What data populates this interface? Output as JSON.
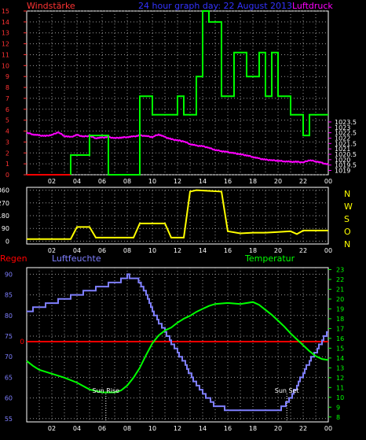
{
  "colors": {
    "bg": "#000000",
    "frame": "#ffffff",
    "grid": "#9a9a9a",
    "wind": "#00ff00",
    "pressure": "#ff00ff",
    "winddir": "#ffff00",
    "humidity": "#7f7fff",
    "temperature": "#00ff00",
    "rain": "#ff0000",
    "daylight": "#ffffff",
    "axis_left_top": "#ff3333",
    "axis_right_top": "#ff00ff",
    "axis_left_bottom": "#7f7fff",
    "axis_right_bottom": "#00ff00"
  },
  "header": {
    "left": "Windstärke",
    "center": "24 hour graph day: 22 August 2013",
    "right": "Luftdruck"
  },
  "chart_data": [
    {
      "type": "line",
      "panel": "wind-pressure",
      "title": "24 hour graph day: 22 August 2013",
      "ylabel": "Windstärke",
      "y2label": "Luftdruck",
      "x_ticks": [
        "02",
        "04",
        "06",
        "08",
        "10",
        "12",
        "14",
        "16",
        "18",
        "20",
        "22",
        "00"
      ],
      "ylim": [
        0,
        15
      ],
      "y_ticks": [
        0,
        1,
        2,
        3,
        4,
        5,
        6,
        7,
        8,
        9,
        10,
        11,
        12,
        13,
        14,
        15
      ],
      "y2lim": [
        1018.6,
        1033.8
      ],
      "y2_ticks": [
        1019,
        1019.5,
        1020,
        1020.5,
        1021,
        1021.5,
        1022,
        1022.5,
        1023,
        1023.5
      ],
      "y2_tick_labels": [
        "1019",
        "1019.5",
        "1020",
        "1020.5",
        "1021",
        "1021.5",
        "1022",
        "1022.5",
        "1023",
        "1023.5"
      ],
      "series": [
        {
          "name": "Windstärke",
          "color": "#ff0000",
          "points": [
            [
              0,
              0
            ],
            [
              3.5,
              0
            ]
          ]
        },
        {
          "name": "Windstärke",
          "color": "#00ff00",
          "points": [
            [
              3.5,
              0
            ],
            [
              3.5,
              1.8
            ],
            [
              5,
              1.8
            ],
            [
              5,
              3.6
            ],
            [
              6.5,
              3.6
            ],
            [
              6.5,
              0
            ],
            [
              9,
              0
            ],
            [
              9,
              7.2
            ],
            [
              10,
              7.2
            ],
            [
              10,
              5.5
            ],
            [
              12,
              5.5
            ],
            [
              12,
              7.2
            ],
            [
              12.5,
              7.2
            ],
            [
              12.5,
              5.5
            ],
            [
              13.5,
              5.5
            ],
            [
              13.5,
              9
            ],
            [
              14,
              9
            ],
            [
              14,
              15
            ],
            [
              14.5,
              15
            ],
            [
              14.5,
              14
            ],
            [
              15.5,
              14
            ],
            [
              15.5,
              7.2
            ],
            [
              16.5,
              7.2
            ],
            [
              16.5,
              11.2
            ],
            [
              17.5,
              11.2
            ],
            [
              17.5,
              9
            ],
            [
              18.5,
              9
            ],
            [
              18.5,
              11.2
            ],
            [
              19,
              11.2
            ],
            [
              19,
              7.2
            ],
            [
              19.5,
              7.2
            ],
            [
              19.5,
              11.2
            ],
            [
              20,
              11.2
            ],
            [
              20,
              7.2
            ],
            [
              21,
              7.2
            ],
            [
              21,
              5.5
            ],
            [
              22,
              5.5
            ],
            [
              22,
              3.6
            ],
            [
              22.5,
              3.6
            ],
            [
              22.5,
              5.5
            ],
            [
              24,
              5.5
            ]
          ]
        },
        {
          "name": "Luftdruck",
          "color": "#ff00ff",
          "points": [
            [
              0,
              1022.5
            ],
            [
              0.5,
              1022.35
            ],
            [
              1,
              1022.25
            ],
            [
              1.5,
              1022.2
            ],
            [
              2,
              1022.3
            ],
            [
              2.5,
              1022.55
            ],
            [
              3,
              1022.2
            ],
            [
              3.5,
              1022.1
            ],
            [
              4,
              1022.3
            ],
            [
              4.5,
              1022.15
            ],
            [
              5,
              1022.2
            ],
            [
              5.5,
              1022.0
            ],
            [
              6,
              1022.05
            ],
            [
              6.5,
              1022.1
            ],
            [
              7,
              1022.0
            ],
            [
              7.5,
              1022.05
            ],
            [
              8,
              1022.1
            ],
            [
              8.5,
              1022.15
            ],
            [
              9,
              1022.25
            ],
            [
              9.5,
              1022.2
            ],
            [
              10,
              1022.1
            ],
            [
              10.5,
              1022.35
            ],
            [
              11,
              1022.1
            ],
            [
              11.5,
              1021.9
            ],
            [
              12,
              1021.8
            ],
            [
              12.5,
              1021.7
            ],
            [
              13,
              1021.45
            ],
            [
              13.5,
              1021.3
            ],
            [
              14,
              1021.25
            ],
            [
              14.5,
              1021.1
            ],
            [
              15,
              1020.9
            ],
            [
              15.5,
              1020.8
            ],
            [
              16,
              1020.7
            ],
            [
              16.5,
              1020.6
            ],
            [
              17,
              1020.5
            ],
            [
              17.5,
              1020.4
            ],
            [
              18,
              1020.25
            ],
            [
              18.5,
              1020.1
            ],
            [
              19,
              1020.0
            ],
            [
              19.5,
              1019.95
            ],
            [
              20,
              1019.9
            ],
            [
              20.5,
              1019.85
            ],
            [
              21,
              1019.8
            ],
            [
              21.5,
              1019.8
            ],
            [
              22,
              1019.75
            ],
            [
              22.5,
              1019.95
            ],
            [
              23,
              1019.85
            ],
            [
              23.5,
              1019.7
            ],
            [
              24,
              1019.55
            ]
          ]
        }
      ]
    },
    {
      "type": "line",
      "panel": "wind-direction",
      "x_ticks": [
        "02",
        "04",
        "06",
        "08",
        "10",
        "12",
        "14",
        "16",
        "18",
        "20",
        "22",
        "00"
      ],
      "ylim": [
        -20,
        380
      ],
      "y_ticks": [
        0,
        90,
        180,
        270,
        360
      ],
      "right_labels": [
        "N",
        "W",
        "S",
        "O",
        "N"
      ],
      "series": [
        {
          "name": "Windrichtung",
          "color": "#ffff00",
          "points": [
            [
              0,
              15
            ],
            [
              3.5,
              15
            ],
            [
              4,
              100
            ],
            [
              5,
              100
            ],
            [
              5.5,
              25
            ],
            [
              8.5,
              25
            ],
            [
              9,
              125
            ],
            [
              11,
              125
            ],
            [
              11.5,
              25
            ],
            [
              12.5,
              25
            ],
            [
              13,
              350
            ],
            [
              13.5,
              360
            ],
            [
              14.5,
              355
            ],
            [
              15.5,
              350
            ],
            [
              16,
              70
            ],
            [
              17,
              55
            ],
            [
              18,
              60
            ],
            [
              19,
              60
            ],
            [
              20,
              65
            ],
            [
              21,
              70
            ],
            [
              21.5,
              50
            ],
            [
              22,
              75
            ],
            [
              23,
              75
            ],
            [
              24,
              75
            ]
          ]
        }
      ]
    },
    {
      "type": "line",
      "panel": "humidity-temperature",
      "x_ticks": [
        "02",
        "04",
        "06",
        "08",
        "10",
        "12",
        "14",
        "16",
        "18",
        "20",
        "22",
        "00"
      ],
      "legend_left": "Regen",
      "legend_mid": "Luftfeuchte",
      "legend_right": "Temperatur",
      "ylim": [
        54.2,
        91.6
      ],
      "y_ticks": [
        55,
        60,
        65,
        70,
        75,
        80,
        85,
        90
      ],
      "y2lim": [
        7.5,
        23.2
      ],
      "y2_ticks": [
        8,
        9,
        10,
        11,
        12,
        13,
        14,
        15,
        16,
        17,
        18,
        19,
        20,
        21,
        22,
        23
      ],
      "rain_marker": "0",
      "annotations": [
        {
          "text": "Sun Rise",
          "x": 6.3
        },
        {
          "text": "Sun Set",
          "x": 20.7
        }
      ],
      "series": [
        {
          "name": "Luftfeuchte",
          "color": "#7f7fff",
          "points": [
            [
              0,
              81
            ],
            [
              1,
              82
            ],
            [
              2,
              83
            ],
            [
              3,
              84
            ],
            [
              4,
              85
            ],
            [
              5,
              86
            ],
            [
              6,
              87
            ],
            [
              7,
              88
            ],
            [
              8,
              89.5
            ],
            [
              8.7,
              89.3
            ],
            [
              9.5,
              85
            ],
            [
              10,
              81
            ],
            [
              10.5,
              78
            ],
            [
              11,
              76
            ],
            [
              11.5,
              73
            ],
            [
              12,
              71
            ],
            [
              12.5,
              68.5
            ],
            [
              13,
              65.5
            ],
            [
              13.5,
              63
            ],
            [
              14,
              61
            ],
            [
              14.5,
              59.5
            ],
            [
              15,
              58
            ],
            [
              16,
              57
            ],
            [
              17,
              57
            ],
            [
              18,
              57
            ],
            [
              19,
              56.5
            ],
            [
              20,
              57
            ],
            [
              20.5,
              58
            ],
            [
              21,
              60
            ],
            [
              21.5,
              63
            ],
            [
              22,
              66
            ],
            [
              22.5,
              69
            ],
            [
              23,
              71
            ],
            [
              23.5,
              74
            ],
            [
              24,
              76
            ]
          ]
        },
        {
          "name": "Temperatur",
          "color": "#00ff00",
          "points": [
            [
              0,
              13.7
            ],
            [
              0.5,
              13.2
            ],
            [
              1,
              12.8
            ],
            [
              2,
              12.4
            ],
            [
              3,
              12.0
            ],
            [
              4,
              11.5
            ],
            [
              5,
              10.8
            ],
            [
              6,
              10.5
            ],
            [
              7,
              10.5
            ],
            [
              7.5,
              10.7
            ],
            [
              8,
              11.2
            ],
            [
              8.5,
              12.0
            ],
            [
              9,
              13.0
            ],
            [
              9.5,
              14.3
            ],
            [
              10,
              15.5
            ],
            [
              10.5,
              16.3
            ],
            [
              11,
              16.8
            ],
            [
              11.5,
              17.1
            ],
            [
              12,
              17.6
            ],
            [
              12.5,
              18.0
            ],
            [
              13,
              18.3
            ],
            [
              13.5,
              18.7
            ],
            [
              14,
              19.0
            ],
            [
              14.5,
              19.3
            ],
            [
              15,
              19.5
            ],
            [
              16,
              19.6
            ],
            [
              17,
              19.5
            ],
            [
              18,
              19.7
            ],
            [
              18.5,
              19.4
            ],
            [
              19,
              18.9
            ],
            [
              19.5,
              18.4
            ],
            [
              20,
              17.8
            ],
            [
              20.5,
              17.2
            ],
            [
              21,
              16.5
            ],
            [
              21.5,
              15.9
            ],
            [
              22,
              15.3
            ],
            [
              22.5,
              14.7
            ],
            [
              23,
              14.2
            ],
            [
              23.5,
              13.9
            ],
            [
              24,
              13.8
            ]
          ]
        }
      ]
    }
  ]
}
